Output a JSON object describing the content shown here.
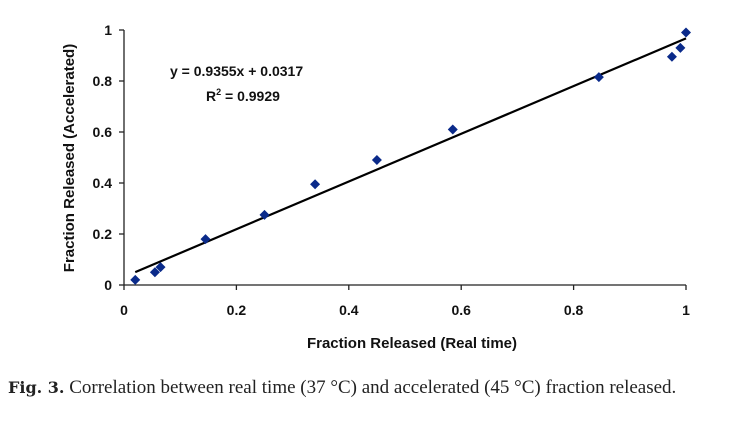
{
  "chart_data": {
    "type": "scatter",
    "xlabel": "Fraction Released (Real time)",
    "ylabel": "Fraction Released (Accelerated)",
    "xlim": [
      0,
      1
    ],
    "ylim": [
      0,
      1
    ],
    "xticks": [
      "0",
      "0.2",
      "0.4",
      "0.6",
      "0.8",
      "1"
    ],
    "yticks": [
      "0",
      "0.2",
      "0.4",
      "0.6",
      "0.8",
      "1"
    ],
    "grid": false,
    "series": [
      {
        "marker": "diamond",
        "color": "#0a2a8a",
        "points": [
          {
            "x": 0.02,
            "y": 0.02
          },
          {
            "x": 0.055,
            "y": 0.05
          },
          {
            "x": 0.065,
            "y": 0.07
          },
          {
            "x": 0.145,
            "y": 0.18
          },
          {
            "x": 0.25,
            "y": 0.275
          },
          {
            "x": 0.34,
            "y": 0.395
          },
          {
            "x": 0.45,
            "y": 0.49
          },
          {
            "x": 0.585,
            "y": 0.61
          },
          {
            "x": 0.845,
            "y": 0.815
          },
          {
            "x": 0.975,
            "y": 0.895
          },
          {
            "x": 0.99,
            "y": 0.93
          },
          {
            "x": 1.0,
            "y": 0.99
          }
        ]
      }
    ],
    "trendline": {
      "slope": 0.9355,
      "intercept": 0.0317,
      "x_range": [
        0.02,
        1.0
      ],
      "color": "#000000",
      "equation": "y = 0.9355x + 0.0317",
      "r2_prefix": "R",
      "r2_exp": "2",
      "r2_value": " = 0.9929"
    }
  },
  "caption": {
    "label": "Fig. 3.",
    "text": " Correlation between real time (37 °C) and accelerated (45 °C) fraction released."
  }
}
